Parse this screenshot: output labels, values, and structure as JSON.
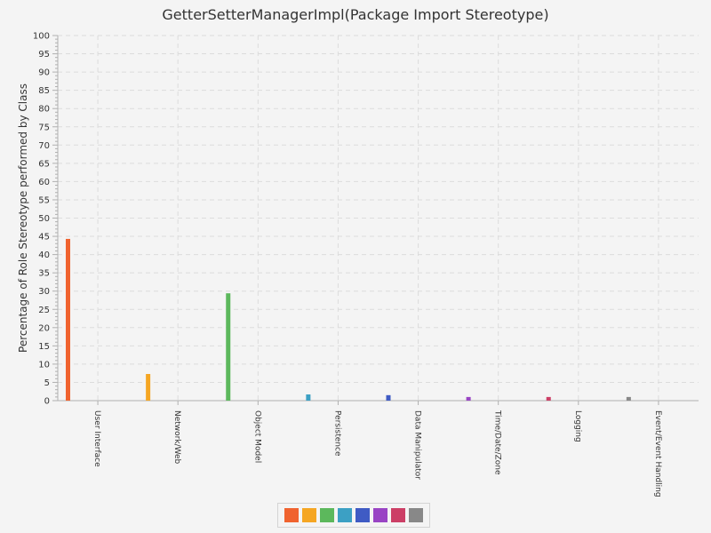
{
  "chart_data": {
    "type": "bar",
    "title": "GetterSetterManagerImpl(Package Import Stereotype)",
    "xlabel": "",
    "ylabel": "Percentage of Role Stereotype performed by Class",
    "ylim": [
      0,
      100
    ],
    "ytick_step": 5,
    "grid": true,
    "legend": "bottom",
    "categories": [
      "User Interface",
      "Network/Web",
      "Object Model",
      "Persistence",
      "Data Manipulator",
      "Time/Date/Zone",
      "Logging",
      "Event/Event Handling"
    ],
    "values": [
      44.3,
      7.3,
      29.4,
      1.7,
      1.5,
      1.0,
      1.0,
      1.0
    ],
    "colors": [
      "#f0632f",
      "#f5a623",
      "#5cb85c",
      "#3ca0c4",
      "#3f5bc4",
      "#9944c4",
      "#cc3f66",
      "#888888"
    ]
  }
}
